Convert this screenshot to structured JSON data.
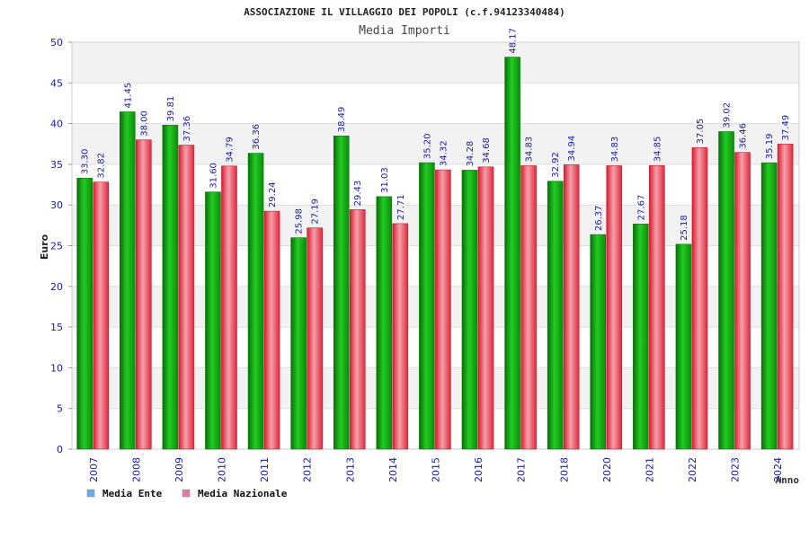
{
  "chart_data": {
    "type": "bar",
    "title": "ASSOCIAZIONE IL VILLAGGIO DEI POPOLI (c.f.94123340484)",
    "subtitle": "Media Importi",
    "xlabel": "Anno",
    "ylabel": "Euro",
    "ylim": [
      0,
      50
    ],
    "yticks": [
      0,
      5,
      10,
      15,
      20,
      25,
      30,
      35,
      40,
      45,
      50
    ],
    "grid": true,
    "legend_position": "bottom-left",
    "categories": [
      "2007",
      "2008",
      "2009",
      "2010",
      "2011",
      "2012",
      "2013",
      "2014",
      "2015",
      "2016",
      "2017",
      "2018",
      "2020",
      "2021",
      "2022",
      "2023",
      "2024"
    ],
    "series": [
      {
        "name": "Media Ente",
        "color": "#22aa22",
        "legend_color": "#6aa8e8",
        "values": [
          33.3,
          41.45,
          39.81,
          31.6,
          36.36,
          25.98,
          38.49,
          31.03,
          35.2,
          34.28,
          48.17,
          32.92,
          26.37,
          27.67,
          25.18,
          39.02,
          35.19
        ],
        "labels": [
          "33.30",
          "41.45",
          "39.81",
          "31.60",
          "36.36",
          "25.98",
          "38.49",
          "31.03",
          "35.20",
          "34.28",
          "48.17",
          "32.92",
          "26.37",
          "27.67",
          "25.18",
          "39.02",
          "35.19"
        ]
      },
      {
        "name": "Media Nazionale",
        "color": "#e02a3c",
        "legend_color": "#e07aa8",
        "values": [
          32.82,
          38.0,
          37.36,
          34.79,
          29.24,
          27.19,
          29.43,
          27.71,
          34.32,
          34.68,
          34.83,
          34.94,
          34.83,
          34.85,
          37.05,
          36.46,
          37.49
        ],
        "labels": [
          "32.82",
          "38.00",
          "37.36",
          "34.79",
          "29.24",
          "27.19",
          "29.43",
          "27.71",
          "34.32",
          "34.68",
          "34.83",
          "34.94",
          "34.83",
          "34.85",
          "37.05",
          "36.46",
          "37.49"
        ]
      }
    ]
  }
}
